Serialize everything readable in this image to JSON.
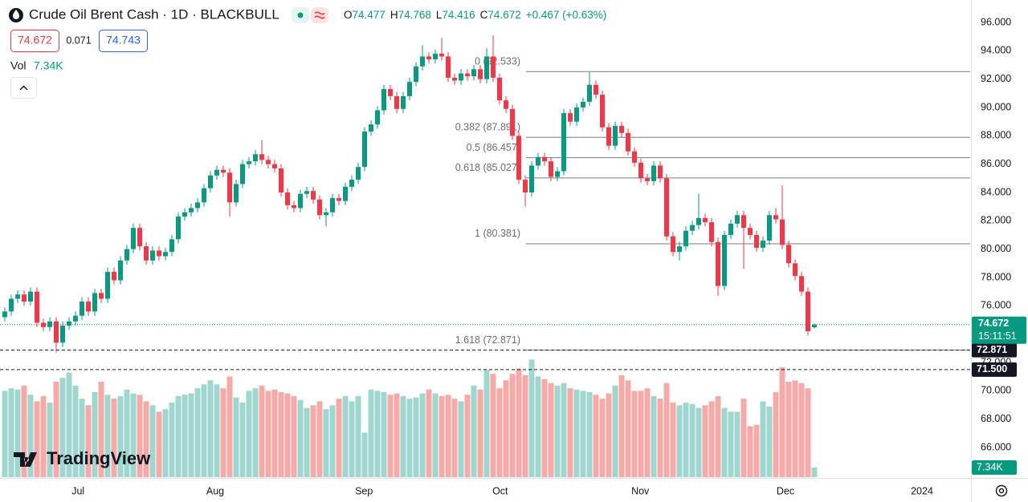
{
  "chart_data": {
    "type": "candlestick",
    "title": "Crude Oil Brent Cash · 1D · BLACKBULL",
    "open": [
      75.2,
      75.6,
      76.5,
      76.8,
      76.3,
      77.0,
      74.8,
      74.5,
      74.9,
      73.4,
      74.6,
      74.9,
      75.3,
      76.3,
      75.6,
      76.9,
      76.5,
      78.4,
      77.8,
      79.2,
      80.0,
      81.5,
      80.2,
      79.2,
      79.9,
      79.5,
      79.8,
      80.7,
      82.3,
      82.6,
      82.9,
      83.3,
      84.3,
      85.2,
      85.6,
      85.4,
      83.3,
      84.6,
      86.0,
      86.2,
      86.7,
      86.3,
      86.0,
      85.7,
      84.0,
      83.1,
      82.9,
      83.9,
      84.1,
      83.5,
      82.4,
      82.6,
      83.6,
      83.4,
      84.4,
      84.9,
      85.8,
      88.3,
      88.8,
      89.8,
      91.3,
      90.8,
      89.9,
      90.8,
      91.8,
      92.9,
      93.6,
      93.4,
      93.8,
      93.6,
      92.1,
      91.9,
      92.4,
      92.2,
      92.7,
      92.0,
      93.6,
      92.1,
      90.5,
      89.9,
      88.0,
      84.9,
      84.0,
      85.9,
      86.5,
      86.2,
      85.1,
      85.5,
      89.6,
      89.0,
      90.0,
      90.4,
      91.6,
      90.9,
      88.6,
      87.3,
      88.7,
      88.2,
      86.9,
      86.1,
      85.0,
      84.8,
      85.9,
      85.0,
      80.9,
      79.8,
      80.2,
      81.3,
      81.7,
      82.2,
      81.9,
      80.5,
      77.4,
      81.0,
      81.8,
      82.4,
      81.5,
      81.0,
      80.1,
      80.6,
      82.4,
      82.1,
      80.3,
      79.0,
      78.1,
      77.0,
      74.477
    ],
    "high": [
      75.9,
      76.8,
      77.1,
      77.1,
      77.3,
      77.3,
      75.1,
      75.2,
      75.2,
      74.9,
      75.2,
      75.6,
      76.6,
      76.6,
      77.2,
      77.2,
      78.7,
      78.7,
      79.5,
      80.3,
      81.8,
      81.8,
      80.5,
      80.2,
      80.2,
      80.1,
      81.0,
      82.6,
      82.9,
      83.2,
      83.6,
      84.6,
      85.5,
      85.9,
      85.9,
      85.7,
      84.9,
      86.3,
      86.5,
      87.0,
      87.7,
      86.6,
      86.3,
      86.0,
      84.3,
      83.4,
      84.2,
      84.4,
      84.4,
      83.8,
      82.9,
      83.9,
      83.9,
      84.7,
      85.2,
      86.1,
      88.6,
      89.1,
      90.1,
      91.6,
      91.6,
      91.1,
      91.1,
      92.1,
      93.2,
      94.4,
      93.9,
      94.1,
      94.9,
      93.9,
      92.4,
      92.7,
      92.7,
      93.0,
      93.0,
      94.2,
      95.1,
      92.4,
      90.8,
      90.2,
      88.3,
      85.2,
      86.2,
      86.8,
      86.8,
      86.5,
      85.8,
      89.9,
      89.9,
      90.3,
      90.7,
      92.5,
      91.9,
      91.2,
      88.9,
      89.0,
      89.0,
      88.5,
      87.2,
      86.4,
      85.3,
      86.2,
      86.2,
      85.3,
      81.2,
      80.5,
      81.6,
      82.0,
      83.9,
      82.5,
      82.2,
      80.8,
      81.3,
      82.1,
      82.7,
      82.7,
      81.8,
      81.3,
      80.9,
      82.7,
      82.9,
      84.5,
      80.6,
      79.3,
      78.4,
      77.3,
      74.768
    ],
    "low": [
      74.9,
      75.3,
      76.2,
      76.0,
      76.0,
      74.5,
      74.2,
      74.2,
      72.7,
      73.1,
      74.3,
      74.6,
      75.0,
      75.3,
      75.3,
      76.2,
      76.2,
      77.5,
      77.5,
      78.9,
      79.7,
      79.9,
      78.9,
      78.9,
      79.2,
      79.2,
      79.5,
      80.4,
      82.0,
      82.3,
      82.6,
      83.0,
      84.0,
      84.9,
      85.1,
      82.3,
      83.0,
      84.3,
      85.7,
      85.9,
      86.0,
      85.7,
      85.4,
      83.7,
      82.8,
      82.6,
      82.6,
      83.6,
      83.2,
      82.1,
      81.6,
      82.3,
      83.1,
      83.1,
      84.1,
      84.6,
      85.5,
      88.0,
      88.5,
      89.5,
      90.5,
      89.6,
      89.6,
      90.5,
      91.5,
      92.6,
      93.1,
      93.1,
      93.3,
      91.8,
      91.6,
      91.6,
      91.9,
      91.9,
      91.7,
      91.7,
      91.8,
      90.2,
      89.6,
      87.7,
      84.6,
      83.0,
      83.7,
      85.6,
      85.9,
      84.8,
      84.8,
      85.2,
      88.7,
      88.7,
      89.7,
      90.1,
      90.6,
      88.3,
      87.0,
      87.0,
      87.9,
      86.6,
      85.8,
      84.7,
      84.5,
      84.5,
      84.7,
      80.6,
      79.5,
      79.2,
      79.9,
      81.0,
      81.4,
      81.6,
      80.2,
      76.7,
      77.1,
      80.7,
      81.5,
      78.6,
      80.7,
      79.8,
      79.8,
      80.3,
      81.8,
      80.0,
      78.7,
      77.8,
      76.7,
      73.9,
      74.416
    ],
    "close": [
      75.6,
      76.5,
      76.8,
      76.3,
      77.0,
      74.8,
      74.5,
      74.9,
      73.4,
      74.6,
      74.9,
      75.3,
      76.3,
      75.6,
      76.9,
      76.5,
      78.4,
      77.8,
      79.2,
      80.0,
      81.5,
      80.2,
      79.2,
      79.9,
      79.5,
      79.8,
      80.7,
      82.3,
      82.6,
      82.9,
      83.3,
      84.3,
      85.2,
      85.6,
      85.4,
      83.3,
      84.6,
      86.0,
      86.2,
      86.7,
      86.3,
      86.0,
      85.7,
      84.0,
      83.1,
      82.9,
      83.9,
      84.1,
      83.5,
      82.4,
      82.6,
      83.6,
      83.4,
      84.4,
      84.9,
      85.8,
      88.3,
      88.8,
      89.8,
      91.3,
      90.8,
      89.9,
      90.8,
      91.8,
      92.9,
      93.6,
      93.4,
      93.8,
      93.6,
      92.1,
      91.9,
      92.4,
      92.2,
      92.7,
      92.0,
      93.6,
      92.1,
      90.5,
      89.9,
      88.0,
      84.9,
      84.0,
      85.9,
      86.5,
      86.2,
      85.1,
      85.5,
      89.6,
      89.0,
      90.0,
      90.4,
      91.6,
      90.9,
      88.6,
      87.3,
      88.7,
      88.2,
      86.9,
      86.1,
      85.0,
      84.8,
      85.9,
      85.0,
      80.9,
      79.8,
      80.2,
      81.3,
      81.7,
      82.2,
      81.9,
      80.5,
      77.4,
      81.0,
      81.8,
      82.4,
      81.5,
      81.0,
      80.1,
      80.6,
      82.4,
      82.1,
      80.3,
      79.0,
      78.1,
      77.0,
      74.205,
      74.672
    ],
    "volume": [
      66,
      68,
      67,
      70,
      63,
      58,
      62,
      57,
      73,
      76,
      80,
      70,
      60,
      55,
      65,
      73,
      63,
      60,
      62,
      67,
      64,
      63,
      58,
      55,
      50,
      52,
      57,
      62,
      63,
      64,
      68,
      71,
      74,
      71,
      68,
      77,
      61,
      57,
      66,
      68,
      70,
      66,
      67,
      65,
      64,
      62,
      59,
      53,
      55,
      58,
      52,
      55,
      60,
      62,
      58,
      62,
      34,
      67,
      66,
      65,
      63,
      64,
      62,
      60,
      61,
      64,
      67,
      64,
      62,
      63,
      60,
      58,
      63,
      70,
      67,
      82,
      79,
      68,
      74,
      79,
      83,
      78,
      90,
      77,
      75,
      72,
      70,
      72,
      68,
      67,
      66,
      65,
      63,
      60,
      64,
      70,
      78,
      74,
      66,
      66,
      68,
      62,
      60,
      72,
      57,
      55,
      57,
      56,
      53,
      55,
      58,
      62,
      53,
      50,
      50,
      60,
      39,
      40,
      58,
      54,
      65,
      84,
      73,
      74,
      72,
      68,
      7.34
    ],
    "volume_label": "7.34K",
    "volume_ylim": [
      0,
      100
    ],
    "up_color": "#089981",
    "down_color": "#f23645",
    "volume_up_color": "#9fd6cd",
    "volume_down_color": "#f7a9a8",
    "xlim": [
      -0.75,
      150.25
    ],
    "xticks": [
      {
        "value": 11.4,
        "label": "Jul"
      },
      {
        "value": 32.75,
        "label": "Aug"
      },
      {
        "value": 55.9,
        "label": "Sep"
      },
      {
        "value": 77.1,
        "label": "Oct"
      },
      {
        "value": 98.9,
        "label": "Nov"
      },
      {
        "value": 121.5,
        "label": "Dec"
      },
      {
        "value": 142.75,
        "label": "2024"
      }
    ],
    "ylim": [
      63.85,
      97.585
    ],
    "yticks": [
      {
        "value": 66,
        "label": "66.000"
      },
      {
        "value": 68,
        "label": "68.000"
      },
      {
        "value": 70,
        "label": "70.000"
      },
      {
        "value": 72,
        "label": "72.000"
      },
      {
        "value": 74,
        "label": "74.000"
      },
      {
        "value": 76,
        "label": "76.000"
      },
      {
        "value": 78,
        "label": "78.000"
      },
      {
        "value": 80,
        "label": "80.000"
      },
      {
        "value": 82,
        "label": "82.000"
      },
      {
        "value": 84,
        "label": "84.000"
      },
      {
        "value": 86,
        "label": "86.000"
      },
      {
        "value": 88,
        "label": "88.000"
      },
      {
        "value": 90,
        "label": "90.000"
      },
      {
        "value": 92,
        "label": "92.000"
      },
      {
        "value": 94,
        "label": "94.000"
      },
      {
        "value": 96,
        "label": "96.000"
      }
    ],
    "grid": false,
    "fib_levels": [
      {
        "value": 92.533,
        "label": "0 (92.533)"
      },
      {
        "value": 87.891,
        "label": "0.382 (87.891)"
      },
      {
        "value": 86.457,
        "label": "0.5 (86.457)"
      },
      {
        "value": 85.027,
        "label": "0.618 (85.027)"
      },
      {
        "value": 80.381,
        "label": "1 (80.381)"
      },
      {
        "value": 72.871,
        "label": "1.618 (72.871)"
      }
    ],
    "hlines": [
      {
        "value": 72.871,
        "label": "72.871"
      },
      {
        "value": 71.5,
        "label": "71.500"
      }
    ],
    "countdown": "15:11:51"
  },
  "ui": {
    "ohlc": [
      {
        "key": "O",
        "value": "74.477"
      },
      {
        "key": "H",
        "value": "74.768"
      },
      {
        "key": "L",
        "value": "74.416"
      },
      {
        "key": "C",
        "value": "74.672"
      }
    ],
    "change": "+0.467 (+0.63%)",
    "sell": "74.672",
    "spread": "0.071",
    "buy": "74.743",
    "vol": "Vol",
    "logo": "TradingView"
  }
}
